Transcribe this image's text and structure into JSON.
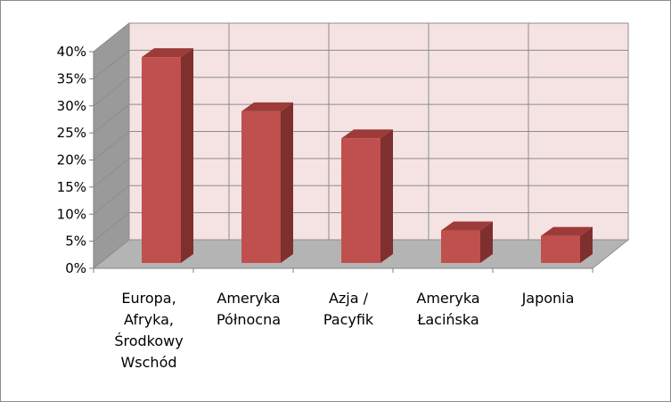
{
  "chart_data": {
    "type": "bar",
    "style": "3d-column",
    "categories": [
      [
        "Europa,",
        "Afryka,",
        "Środkowy",
        "Wschód"
      ],
      [
        "Ameryka",
        "Północna"
      ],
      [
        "Azja /",
        "Pacyfik"
      ],
      [
        "Ameryka",
        "Łacińska"
      ],
      [
        "Japonia"
      ]
    ],
    "values": [
      38,
      28,
      23,
      6,
      5
    ],
    "unit": "%",
    "ylim": [
      0,
      40
    ],
    "yticks": [
      "0%",
      "5%",
      "10%",
      "15%",
      "20%",
      "25%",
      "30%",
      "35%",
      "40%"
    ],
    "title": "",
    "xlabel": "",
    "ylabel": "",
    "grid": true,
    "legend": "none",
    "colors": {
      "bar_front": "#c0504d",
      "bar_side": "#7f2f2d",
      "bar_top": "#9c3b38",
      "back_wall": "#f5e3e3",
      "side_wall": "#9a9a9a",
      "floor": "#b4b4b4",
      "grid": "#8c8c8c"
    }
  }
}
